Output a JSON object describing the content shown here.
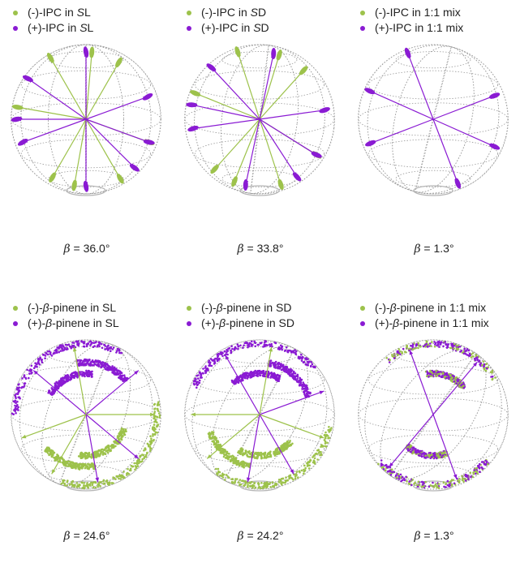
{
  "colors": {
    "minus": "#9dc24b",
    "plus": "#8a1bd3",
    "grid": "#9a9a9a"
  },
  "panels": [
    {
      "legend": [
        {
          "pre": "(-)-IPC in ",
          "em": "S",
          "post": "L"
        },
        {
          "pre": "(+)-IPC in ",
          "em": "S",
          "post": "L"
        }
      ],
      "beta_symbol": "β",
      "beta_value": " = 36.0°",
      "kind": "discrete"
    },
    {
      "legend": [
        {
          "pre": "(-)-IPC in ",
          "em": "S",
          "post": "D"
        },
        {
          "pre": "(+)-IPC in ",
          "em": "S",
          "post": "D"
        }
      ],
      "beta_symbol": "β",
      "beta_value": " = 33.8°",
      "kind": "discrete"
    },
    {
      "legend": [
        {
          "pre": "(-)-IPC in 1:1 mix",
          "em": "",
          "post": ""
        },
        {
          "pre": "(+)-IPC in 1:1 mix",
          "em": "",
          "post": ""
        }
      ],
      "beta_symbol": "β",
      "beta_value": " = 1.3°",
      "kind": "discrete-mix"
    },
    {
      "legend": [
        {
          "pre": "(-)-",
          "em": "β",
          "post": "-pinene in SL"
        },
        {
          "pre": "(+)-",
          "em": "β",
          "post": "-pinene in SL"
        }
      ],
      "beta_symbol": "β",
      "beta_value": " = 24.6°",
      "kind": "continuous"
    },
    {
      "legend": [
        {
          "pre": "(-)-",
          "em": "β",
          "post": "-pinene in SD"
        },
        {
          "pre": "(+)-",
          "em": "β",
          "post": "-pinene in SD"
        }
      ],
      "beta_symbol": "β",
      "beta_value": " = 24.2°",
      "kind": "continuous"
    },
    {
      "legend": [
        {
          "pre": "(-)-",
          "em": "β",
          "post": "-pinene in 1:1 mix"
        },
        {
          "pre": "(+)-",
          "em": "β",
          "post": "-pinene in 1:1 mix"
        }
      ],
      "beta_symbol": "β",
      "beta_value": " = 1.3°",
      "kind": "continuous-mix"
    }
  ]
}
